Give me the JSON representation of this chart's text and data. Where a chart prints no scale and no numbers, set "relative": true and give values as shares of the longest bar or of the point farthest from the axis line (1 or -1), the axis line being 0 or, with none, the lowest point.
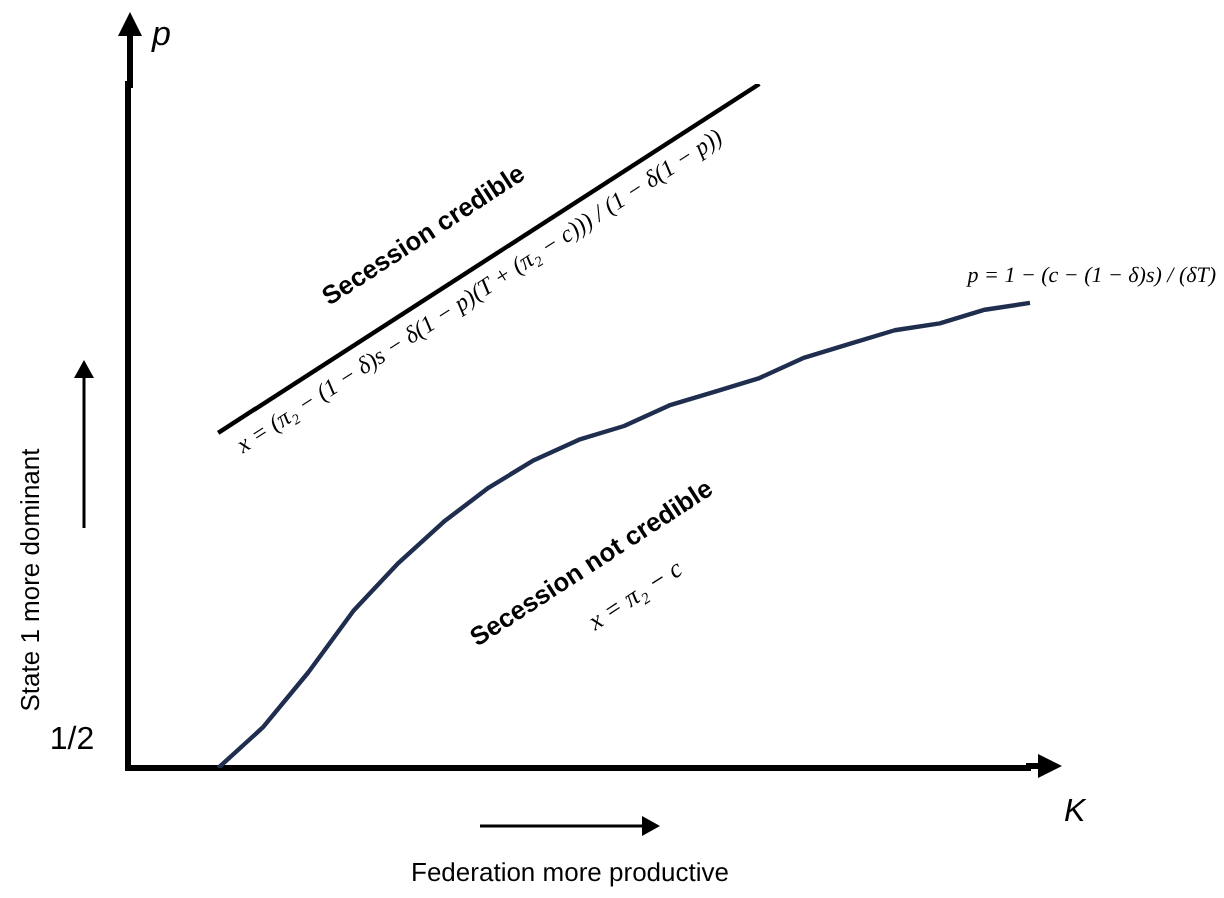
{
  "chart_data": {
    "type": "line",
    "relative": true,
    "xlabel": "Federation more productive",
    "ylabel": "State 1 more dominant",
    "categories": [
      null,
      null,
      null,
      null,
      null,
      null,
      null,
      null,
      null,
      null,
      null,
      null,
      null,
      null,
      null,
      null,
      null,
      null,
      null,
      null,
      null
    ],
    "series": [
      {
        "color": "#1f2d4e",
        "values": [
          null,
          null,
          0,
          0.06,
          0.14,
          0.23,
          0.3,
          0.36,
          0.41,
          0.45,
          0.48,
          0.5,
          0.53,
          0.55,
          0.57,
          0.6,
          0.62,
          0.64,
          0.65,
          0.67,
          0.68
        ]
      },
      {
        "color": "#000000",
        "values": [
          null,
          null,
          0.49,
          null,
          null,
          null,
          null,
          null,
          null,
          null,
          null,
          null,
          null,
          null,
          1,
          null,
          null,
          null,
          null,
          null,
          null
        ]
      }
    ],
    "annotations": [
      "Secession credible",
      "x = (π₂ − (1 − δ)s − δ(1 − p)(T + (π₂ − c))) / (1 − δ(1 − p))",
      "Secession not credible",
      "x = π₂ − c",
      "p = 1 − (c − (1 − δ)s) / (δT)",
      "p",
      "K",
      "1/2"
    ],
    "legend": false,
    "grid": false,
    "marker": "none",
    "line_style": "solid"
  }
}
